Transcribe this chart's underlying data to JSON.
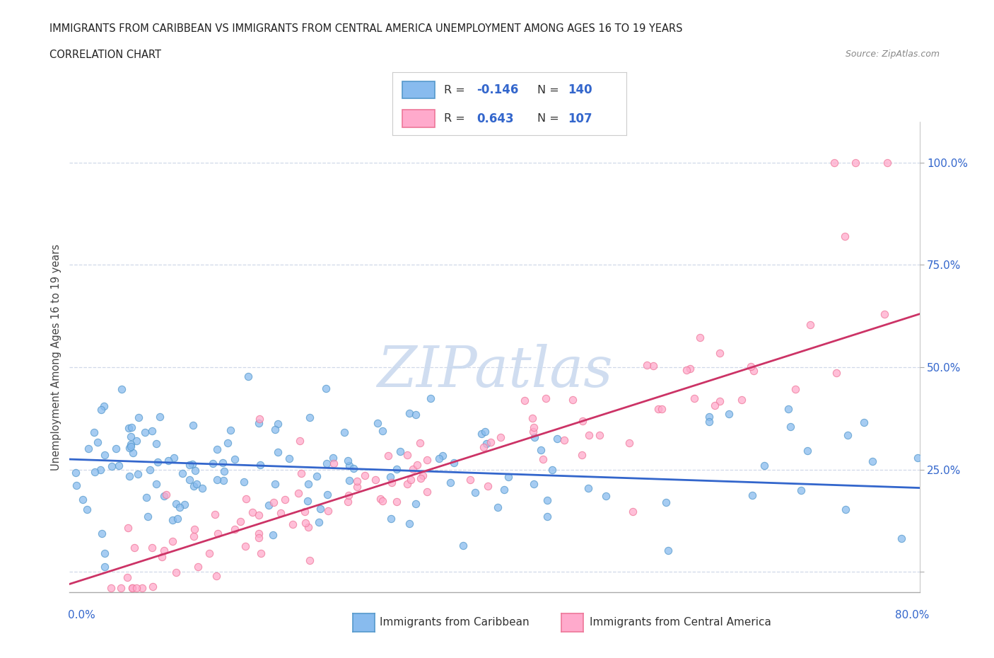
{
  "title_line1": "IMMIGRANTS FROM CARIBBEAN VS IMMIGRANTS FROM CENTRAL AMERICA UNEMPLOYMENT AMONG AGES 16 TO 19 YEARS",
  "title_line2": "CORRELATION CHART",
  "source": "Source: ZipAtlas.com",
  "ylabel": "Unemployment Among Ages 16 to 19 years",
  "x_label_bottom_left": "0.0%",
  "x_label_bottom_right": "80.0%",
  "y_tick_vals": [
    0.0,
    0.25,
    0.5,
    0.75,
    1.0
  ],
  "y_tick_labels": [
    "",
    "25.0%",
    "50.0%",
    "75.0%",
    "100.0%"
  ],
  "xlim": [
    0.0,
    0.8
  ],
  "ylim": [
    -0.05,
    1.1
  ],
  "caribbean_color": "#88bbee",
  "caribbean_edge_color": "#5599cc",
  "central_america_color": "#ffaacc",
  "central_america_edge_color": "#ee7799",
  "trend_blue": "#3366cc",
  "trend_pink": "#cc3366",
  "caribbean_R": -0.146,
  "caribbean_N": 140,
  "central_america_R": 0.643,
  "central_america_N": 107,
  "legend_label_1": "Immigrants from Caribbean",
  "legend_label_2": "Immigrants from Central America",
  "watermark": "ZIPatlas",
  "grid_color": "#d0d8e8",
  "background_color": "#ffffff",
  "carib_trend_x0": 0.0,
  "carib_trend_y0": 0.275,
  "carib_trend_x1": 0.8,
  "carib_trend_y1": 0.205,
  "central_trend_x0": 0.0,
  "central_trend_y0": -0.03,
  "central_trend_x1": 0.8,
  "central_trend_y1": 0.63
}
